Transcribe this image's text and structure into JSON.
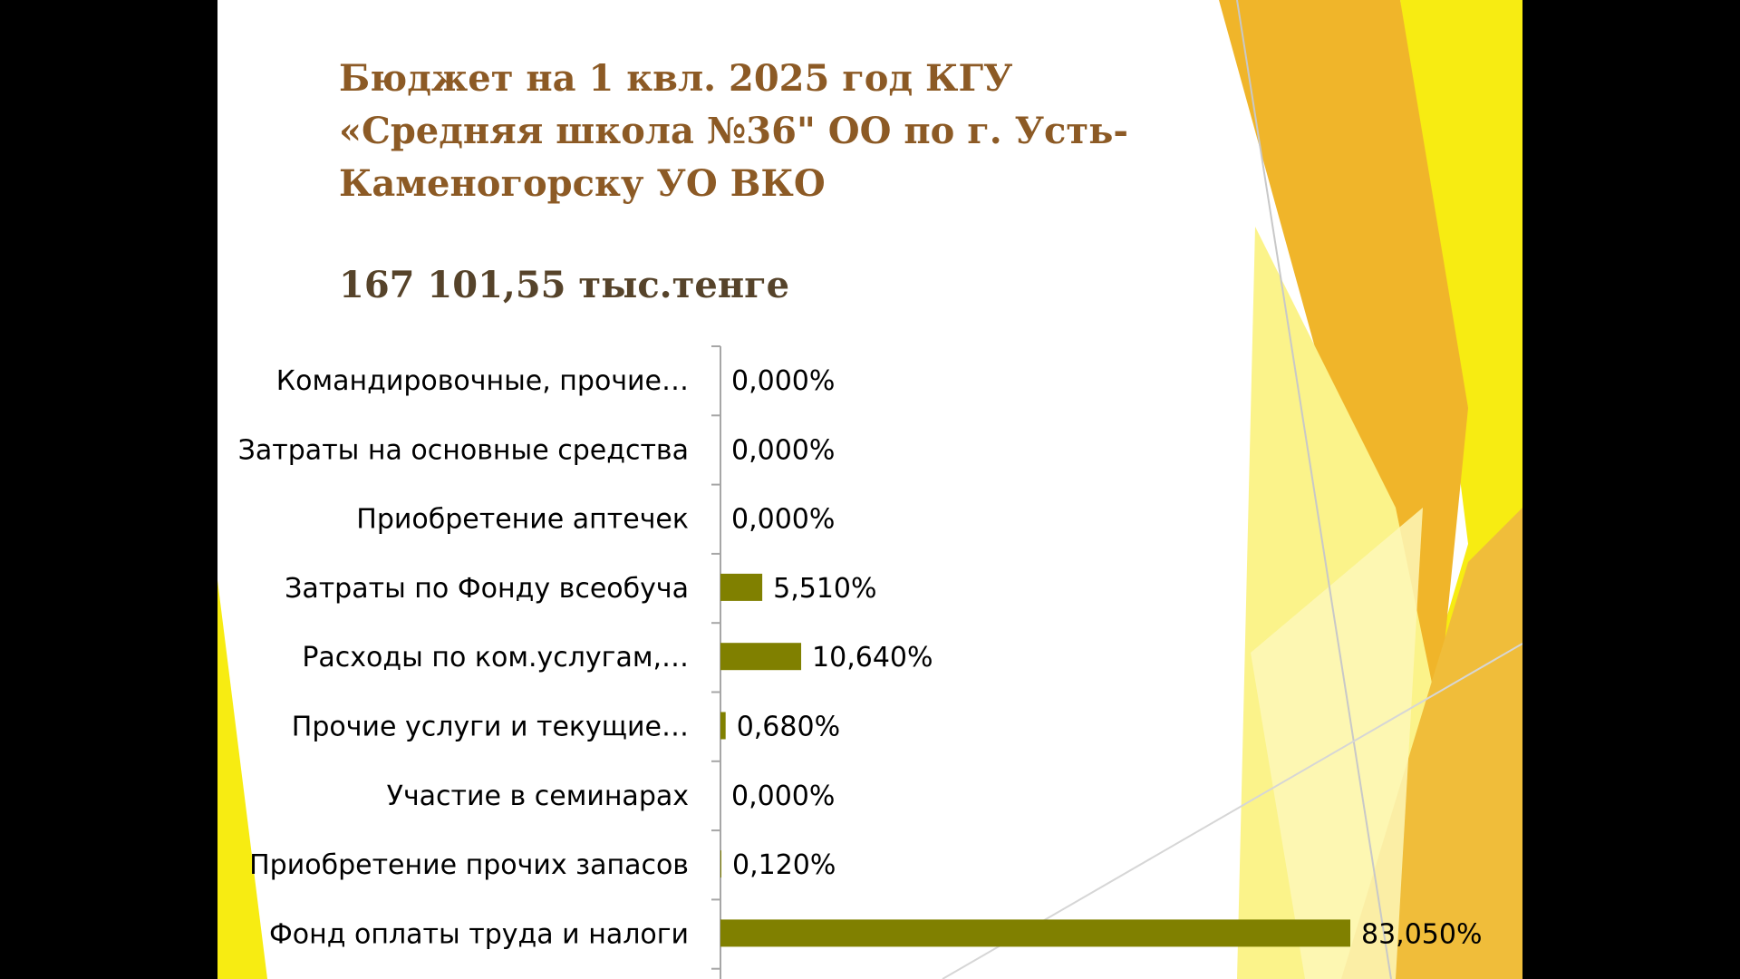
{
  "slide": {
    "title": "Бюджет на 1 квл. 2025 год КГУ «Средняя школа №36\" ОО по г. Усть-Каменогорску УО ВКО",
    "subtitle": "167 101,55 тыс.тенге"
  },
  "colors": {
    "background": "#ffffff",
    "title": "#8c5a25",
    "subtitle": "#56432a",
    "bar": "#808000",
    "accent_yellow": "#f7ec12",
    "accent_gold": "#f0b52a"
  },
  "chart_data": {
    "type": "bar",
    "orientation": "horizontal",
    "categories": [
      "Командировочные, прочие…",
      "Затраты на основные средства",
      "Приобретение аптечек",
      "Затраты по Фонду всеобуча",
      "Расходы по ком.услугам,…",
      "Прочие услуги и текущие…",
      "Участие в семинарах",
      "Приобретение прочих запасов",
      "Фонд оплаты труда и налоги"
    ],
    "values": [
      0.0,
      0.0,
      0.0,
      5.51,
      10.64,
      0.68,
      0.0,
      0.12,
      83.05
    ],
    "value_labels": [
      "0,000%",
      "0,000%",
      "0,000%",
      "5,510%",
      "10,640%",
      "0,680%",
      "0,000%",
      "0,120%",
      "83,050%"
    ],
    "xlim": [
      0,
      83.05
    ],
    "grid": false,
    "legend": "none"
  }
}
